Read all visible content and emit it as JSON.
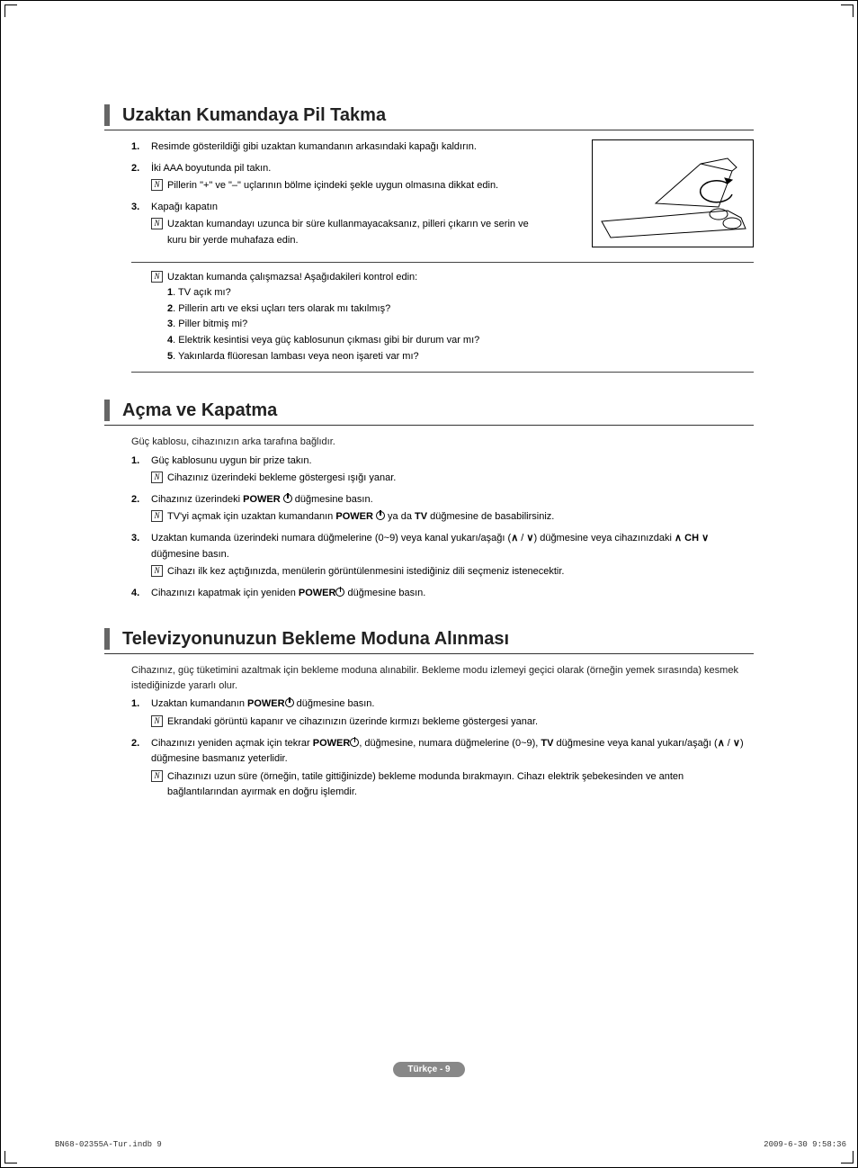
{
  "sections": [
    {
      "title": "Uzaktan Kumandaya Pil Takma",
      "intro": "",
      "hasIllustration": true,
      "limitedWidth": true,
      "items": [
        {
          "text": "Resimde gösterildiği gibi uzaktan kumandanın arkasındaki kapağı kaldırın.",
          "notes": []
        },
        {
          "text": "İki AAA boyutunda pil takın.",
          "notes": [
            "Pillerin \"+\" ve \"–\" uçlarının bölme içindeki şekle uygun olmasına dikkat edin."
          ]
        },
        {
          "text": "Kapağı kapatın",
          "notes": [
            "Uzaktan kumandayı uzunca bir süre kullanmayacaksanız, pilleri çıkarın ve serin ve kuru bir yerde muhafaza edin."
          ]
        }
      ],
      "troubleshoot": {
        "title": "Uzaktan kumanda çalışmazsa! Aşağıdakileri kontrol edin:",
        "points": [
          "1. TV açık mı?",
          "2. Pillerin artı ve eksi uçları ters olarak mı takılmış?",
          "3. Piller bitmiş mi?",
          "4. Elektrik kesintisi veya güç kablosunun çıkması gibi bir durum var mı?",
          "5. Yakınlarda flüoresan lambası veya neon işareti var mı?"
        ]
      }
    },
    {
      "title": "Açma ve Kapatma",
      "intro": "Güç kablosu, cihazınızın arka tarafına bağlıdır.",
      "hasIllustration": false,
      "limitedWidth": false,
      "items": [
        {
          "text": "Güç kablosunu uygun bir prize takın.",
          "notes": [
            "Cihazınız üzerindeki bekleme göstergesi ışığı yanar."
          ]
        },
        {
          "html": "Cihazınız üzerindeki <b>POWER</b> <span class='power-icon' data-name='power-icon' data-interactable='false'></span> düğmesine basın.",
          "notes": [
            "TV'yi açmak için uzaktan kumandanın <b>POWER</b> <span class='power-icon' data-name='power-icon' data-interactable='false'></span> ya da <b>TV</b> düğmesine de basabilirsiniz."
          ]
        },
        {
          "html": "Uzaktan kumanda üzerindeki numara düğmelerine (0~9) veya kanal yukarı/aşağı (<span class='chev-up' data-name='chevron-up-icon' data-interactable='false'>∧</span> / <span class='chev-down' data-name='chevron-down-icon' data-interactable='false'>∨</span>) düğmesine veya cihazınızdaki <span class='chev-up' data-name='chevron-up-icon' data-interactable='false'>∧</span> <b>CH</b> <span class='chev-down' data-name='chevron-down-icon' data-interactable='false'>∨</span> düğmesine basın.",
          "notes": [
            "Cihazı ilk kez açtığınızda, menülerin görüntülenmesini istediğiniz dili seçmeniz istenecektir."
          ]
        },
        {
          "html": "Cihazınızı kapatmak için yeniden <b>POWER</b><span class='power-icon' data-name='power-icon' data-interactable='false'></span> düğmesine basın.",
          "notes": []
        }
      ]
    },
    {
      "title": "Televizyonunuzun Bekleme Moduna Alınması",
      "intro": "Cihazınız, güç tüketimini azaltmak için bekleme moduna alınabilir. Bekleme modu izlemeyi geçici olarak (örneğin yemek sırasında) kesmek istediğinizde yararlı olur.",
      "hasIllustration": false,
      "limitedWidth": false,
      "items": [
        {
          "html": "Uzaktan kumandanın <b>POWER</b><span class='power-icon' data-name='power-icon' data-interactable='false'></span> düğmesine basın.",
          "notes": [
            "Ekrandaki görüntü kapanır ve cihazınızın üzerinde kırmızı bekleme göstergesi yanar."
          ]
        },
        {
          "html": "Cihazınızı yeniden açmak için tekrar <b>POWER</b><span class='power-icon' data-name='power-icon' data-interactable='false'></span>, düğmesine, numara düğmelerine (0~9), <b>TV</b> düğmesine veya kanal yukarı/aşağı (<span class='chev-up' data-name='chevron-up-icon' data-interactable='false'>∧</span> / <span class='chev-down' data-name='chevron-down-icon' data-interactable='false'>∨</span>) düğmesine basmanız yeterlidir.",
          "notes": [
            "Cihazınızı uzun süre (örneğin, tatile gittiğinizde) bekleme modunda bırakmayın. Cihazı elektrik şebekesinden ve anten bağlantılarından ayırmak en doğru işlemdir."
          ]
        }
      ]
    }
  ],
  "footer": {
    "pageBadge": "Türkçe - 9"
  },
  "printMeta": {
    "file": "BN68-02355A-Tur.indb   9",
    "timestamp": "2009-6-30   9:58:36"
  }
}
